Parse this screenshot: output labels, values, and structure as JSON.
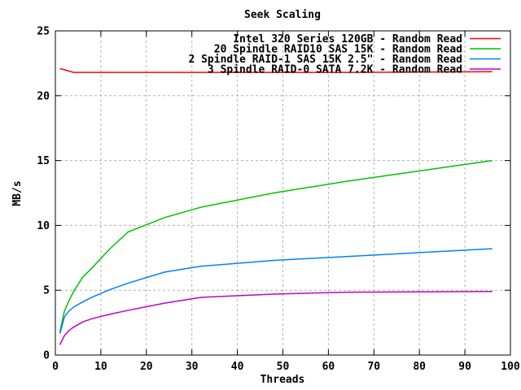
{
  "chart_data": {
    "type": "line",
    "title": "Seek Scaling",
    "xlabel": "Threads",
    "ylabel": "MB/s",
    "xlim": [
      0,
      100
    ],
    "ylim": [
      0,
      25
    ],
    "xticks": [
      0,
      10,
      20,
      30,
      40,
      50,
      60,
      70,
      80,
      90,
      100
    ],
    "yticks": [
      0,
      5,
      10,
      15,
      20,
      25
    ],
    "grid": true,
    "grid_color": "#b0b0b0",
    "axis_color": "#000000",
    "legend_position": "top-right-inside",
    "x": [
      1,
      2,
      3,
      4,
      6,
      8,
      12,
      16,
      24,
      32,
      48,
      64,
      96
    ],
    "series": [
      {
        "name": "Intel 320 Series 120GB - Random Read",
        "color": "#ff0000",
        "values": [
          22.1,
          22.0,
          21.9,
          21.8,
          21.8,
          21.8,
          21.8,
          21.8,
          21.8,
          21.8,
          21.8,
          21.8,
          21.85
        ]
      },
      {
        "name": "20 Spindle RAID10 SAS 15K - Random Read",
        "color": "#00c000",
        "values": [
          1.8,
          3.4,
          4.2,
          4.9,
          6.0,
          6.7,
          8.2,
          9.5,
          10.6,
          11.4,
          12.5,
          13.4,
          15.0
        ]
      },
      {
        "name": "2 Spindle RAID-1 SAS 15K 2.5\" - Random Read",
        "color": "#0080ff",
        "values": [
          1.65,
          2.95,
          3.4,
          3.7,
          4.1,
          4.45,
          5.05,
          5.55,
          6.4,
          6.85,
          7.3,
          7.6,
          8.2
        ]
      },
      {
        "name": "3 Spindle RAID-0 SATA 7.2K - Random Read",
        "color": "#c000c0",
        "values": [
          0.8,
          1.5,
          1.9,
          2.15,
          2.55,
          2.8,
          3.15,
          3.45,
          4.0,
          4.45,
          4.7,
          4.85,
          4.9
        ]
      }
    ]
  }
}
